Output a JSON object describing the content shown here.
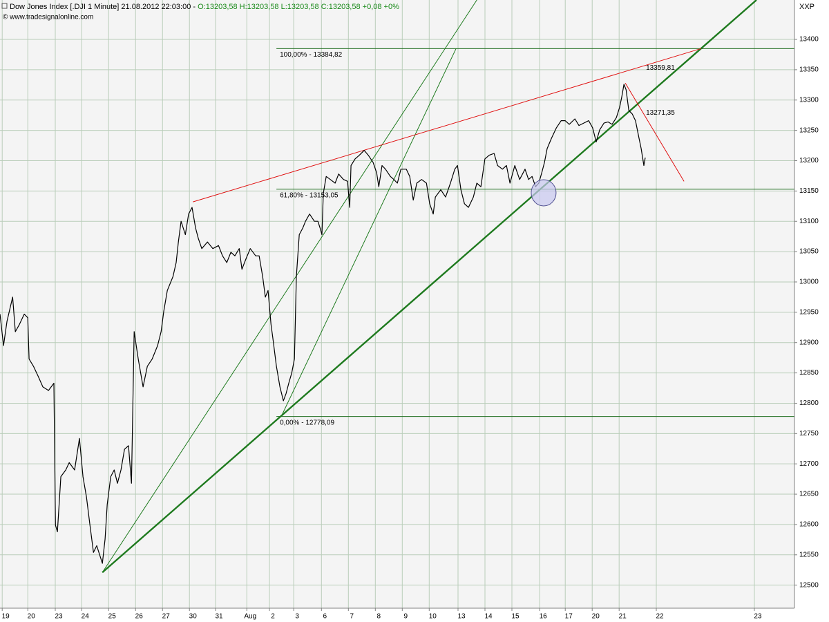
{
  "chart_data": {
    "type": "line",
    "title": "Dow Jones Index [.DJI  1 Minute] 21.08.2012 22:03:00 - ",
    "subtitle": "O:13203,58 H:13203,58 L:13203,58 C:13203,58 +0,08 +0%",
    "source": "© www.tradesignalonline.com",
    "axis_label": "XXP",
    "grid": true,
    "color": "#000000",
    "xlim": [
      -0.21,
      29.28
    ],
    "ylim": [
      12462,
      13465
    ],
    "yticks": [
      12500,
      12550,
      12600,
      12650,
      12700,
      12750,
      12800,
      12850,
      12900,
      12950,
      13000,
      13050,
      13100,
      13150,
      13200,
      13250,
      13300,
      13350,
      13400
    ],
    "xticks": [
      {
        "value": 0,
        "label": "19"
      },
      {
        "value": 0.95,
        "label": "20"
      },
      {
        "value": 1.97,
        "label": "23"
      },
      {
        "value": 2.95,
        "label": "24"
      },
      {
        "value": 3.95,
        "label": "25"
      },
      {
        "value": 4.95,
        "label": "26"
      },
      {
        "value": 5.95,
        "label": "27"
      },
      {
        "value": 6.95,
        "label": "30"
      },
      {
        "value": 7.92,
        "label": "31"
      },
      {
        "value": 9.08,
        "label": "Aug"
      },
      {
        "value": 9.92,
        "label": "2"
      },
      {
        "value": 10.82,
        "label": "3"
      },
      {
        "value": 11.85,
        "label": "6"
      },
      {
        "value": 12.85,
        "label": "7"
      },
      {
        "value": 13.85,
        "label": "8"
      },
      {
        "value": 14.85,
        "label": "9"
      },
      {
        "value": 15.85,
        "label": "10"
      },
      {
        "value": 16.92,
        "label": "13"
      },
      {
        "value": 17.92,
        "label": "14"
      },
      {
        "value": 18.92,
        "label": "15"
      },
      {
        "value": 19.95,
        "label": "16"
      },
      {
        "value": 20.9,
        "label": "17"
      },
      {
        "value": 21.9,
        "label": "20"
      },
      {
        "value": 22.9,
        "label": "21"
      },
      {
        "value": 24.28,
        "label": "22"
      },
      {
        "value": 27.92,
        "label": "23"
      }
    ],
    "x": [
      -0.21,
      -0.08,
      0.05,
      0.26,
      0.36,
      0.51,
      0.69,
      0.82,
      0.87,
      1.03,
      1.21,
      1.38,
      1.59,
      1.79,
      1.85,
      1.92,
      2.05,
      2.23,
      2.36,
      2.56,
      2.74,
      2.87,
      3.0,
      3.13,
      3.26,
      3.38,
      3.59,
      3.69,
      3.77,
      3.9,
      4.03,
      4.15,
      4.28,
      4.41,
      4.56,
      4.67,
      4.77,
      4.92,
      5.1,
      5.26,
      5.44,
      5.64,
      5.77,
      5.87,
      6.0,
      6.21,
      6.33,
      6.41,
      6.51,
      6.67,
      6.79,
      6.92,
      7.05,
      7.15,
      7.28,
      7.49,
      7.69,
      7.9,
      8.05,
      8.21,
      8.36,
      8.51,
      8.67,
      8.77,
      8.92,
      9.08,
      9.28,
      9.41,
      9.54,
      9.64,
      9.74,
      9.85,
      9.92,
      10.05,
      10.18,
      10.31,
      10.41,
      10.51,
      10.62,
      10.72,
      10.79,
      10.9,
      11.03,
      11.13,
      11.28,
      11.46,
      11.59,
      11.67,
      11.74,
      11.79,
      11.9,
      12.05,
      12.23,
      12.36,
      12.54,
      12.69,
      12.77,
      12.82,
      12.97,
      13.13,
      13.31,
      13.46,
      13.64,
      13.77,
      13.85,
      13.97,
      14.1,
      14.28,
      14.41,
      14.54,
      14.67,
      14.87,
      15.0,
      15.13,
      15.26,
      15.44,
      15.62,
      15.74,
      15.87,
      15.95,
      16.15,
      16.33,
      16.51,
      16.67,
      16.77,
      16.9,
      17.03,
      17.18,
      17.36,
      17.49,
      17.64,
      17.79,
      17.95,
      18.13,
      18.26,
      18.44,
      18.59,
      18.72,
      18.9,
      19.08,
      19.28,
      19.41,
      19.54,
      19.67,
      19.79,
      19.9,
      20.0,
      20.1,
      20.26,
      20.44,
      20.62,
      20.77,
      20.92,
      21.13,
      21.28,
      21.46,
      21.64,
      21.79,
      21.92,
      22.05,
      22.21,
      22.36,
      22.51,
      22.67,
      22.79,
      22.87,
      22.95,
      23.03,
      23.13,
      23.26,
      23.38,
      23.51,
      23.59,
      23.69,
      23.74
    ],
    "values": [
      12947,
      12895,
      12935,
      12975,
      12918,
      12930,
      12947,
      12941,
      12873,
      12861,
      12844,
      12827,
      12821,
      12833,
      12599,
      12588,
      12679,
      12690,
      12702,
      12690,
      12742,
      12679,
      12645,
      12599,
      12554,
      12565,
      12536,
      12576,
      12633,
      12679,
      12690,
      12668,
      12690,
      12724,
      12730,
      12668,
      12918,
      12873,
      12827,
      12861,
      12873,
      12895,
      12918,
      12952,
      12986,
      13009,
      13032,
      13066,
      13100,
      13078,
      13112,
      13123,
      13089,
      13072,
      13055,
      13066,
      13055,
      13060,
      13043,
      13032,
      13049,
      13043,
      13055,
      13021,
      13038,
      13055,
      13043,
      13043,
      13009,
      12975,
      12986,
      12930,
      12907,
      12861,
      12827,
      12804,
      12816,
      12833,
      12850,
      12873,
      13009,
      13078,
      13089,
      13100,
      13112,
      13100,
      13100,
      13089,
      13078,
      13146,
      13174,
      13169,
      13163,
      13178,
      13169,
      13166,
      13123,
      13192,
      13203,
      13209,
      13217,
      13209,
      13197,
      13180,
      13157,
      13192,
      13186,
      13174,
      13169,
      13163,
      13186,
      13186,
      13174,
      13135,
      13163,
      13169,
      13163,
      13129,
      13112,
      13140,
      13152,
      13140,
      13163,
      13186,
      13192,
      13152,
      13129,
      13123,
      13140,
      13163,
      13157,
      13203,
      13209,
      13212,
      13192,
      13186,
      13192,
      13163,
      13192,
      13169,
      13186,
      13169,
      13174,
      13157,
      13163,
      13180,
      13197,
      13220,
      13237,
      13254,
      13266,
      13266,
      13260,
      13269,
      13258,
      13262,
      13266,
      13254,
      13231,
      13251,
      13262,
      13264,
      13260,
      13271,
      13288,
      13305,
      13326,
      13317,
      13283,
      13277,
      13266,
      13237,
      13220,
      13192,
      13205
    ],
    "fib_levels": {
      "start": 10.05,
      "color": "#1e6e1e",
      "levels": [
        {
          "value": 13384.82,
          "label": "100,00% - 13384,82"
        },
        {
          "value": 13153.05,
          "label": "61,80% - 13153,05"
        },
        {
          "value": 12778.09,
          "label": "0,00% - 12778,09"
        }
      ]
    },
    "trend_lines": [
      {
        "x": [
          3.59,
          27.87
        ],
        "y": [
          12521,
          13465
        ],
        "color": "#1e7a1e",
        "style": "thick"
      },
      {
        "x": [
          3.59,
          17.49
        ],
        "y": [
          12521,
          13465
        ],
        "color": "#1e7a1e",
        "style": "thin"
      },
      {
        "x": [
          10.26,
          16.72
        ],
        "y": [
          12781,
          13385
        ],
        "color": "#1e7a1e",
        "style": "thin"
      },
      {
        "x": [
          6.95,
          25.82
        ],
        "y": [
          13132,
          13385
        ],
        "color": "#e01010",
        "style": "thin",
        "label": "13359,81"
      },
      {
        "x": [
          23.0,
          25.18
        ],
        "y": [
          13328,
          13166
        ],
        "color": "#e01010",
        "style": "thin",
        "label": "13271,35"
      }
    ],
    "highlight": {
      "x": 19.97,
      "y": 13147,
      "color": "#c8c8f0"
    }
  }
}
